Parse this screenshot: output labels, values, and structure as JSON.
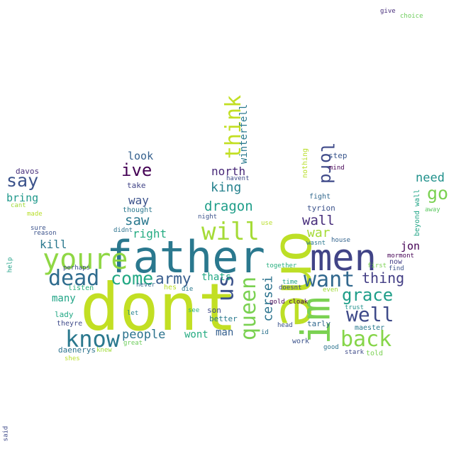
{
  "words": [
    {
      "t": "dont",
      "c": "#c2df23"
    },
    {
      "t": "father",
      "c": "#2a788e"
    },
    {
      "t": "one",
      "c": "#bddf26"
    },
    {
      "t": "men",
      "c": "#414487"
    },
    {
      "t": "im",
      "c": "#7ad151"
    },
    {
      "t": "youre",
      "c": "#8fd744"
    },
    {
      "t": "will",
      "c": "#a5db36"
    },
    {
      "t": "know",
      "c": "#2a788e"
    },
    {
      "t": "dead",
      "c": "#2f6c8e"
    },
    {
      "t": "come",
      "c": "#22a884"
    },
    {
      "t": "army",
      "c": "#365c8d"
    },
    {
      "t": "us",
      "c": "#3b528b"
    },
    {
      "t": "queen",
      "c": "#7ad151"
    },
    {
      "t": "want",
      "c": "#31688e"
    },
    {
      "t": "back",
      "c": "#86d549"
    },
    {
      "t": "grace",
      "c": "#1f9e89"
    },
    {
      "t": "well",
      "c": "#3e4a89"
    },
    {
      "t": "thing",
      "c": "#433e85"
    },
    {
      "t": "think",
      "c": "#c2df23"
    },
    {
      "t": "lord",
      "c": "#3e4989"
    },
    {
      "t": "go",
      "c": "#7ad151"
    },
    {
      "t": "say",
      "c": "#3b528b"
    },
    {
      "t": "ive",
      "c": "#440154"
    },
    {
      "t": "saw",
      "c": "#2a788e"
    },
    {
      "t": "dragon",
      "c": "#1f9e89"
    },
    {
      "t": "wall",
      "c": "#472d7b"
    },
    {
      "t": "war",
      "c": "#a5db36"
    },
    {
      "t": "king",
      "c": "#26828e"
    },
    {
      "t": "north",
      "c": "#482878"
    },
    {
      "t": "cersei",
      "c": "#2c738e"
    },
    {
      "t": "winterfell",
      "c": "#29798e"
    },
    {
      "t": "need",
      "c": "#21918c"
    },
    {
      "t": "people",
      "c": "#2c738e"
    },
    {
      "t": "right",
      "c": "#25ac82"
    },
    {
      "t": "way",
      "c": "#3b528b"
    },
    {
      "t": "look",
      "c": "#35608d"
    },
    {
      "t": "kill",
      "c": "#2a788e"
    },
    {
      "t": "bring",
      "c": "#1f988b"
    },
    {
      "t": "jon",
      "c": "#440154"
    },
    {
      "t": "thats",
      "c": "#22a884"
    },
    {
      "t": "many",
      "c": "#20a486"
    },
    {
      "t": "man",
      "c": "#355f8d"
    },
    {
      "t": "wont",
      "c": "#25ab82"
    },
    {
      "t": "son",
      "c": "#3e4a89"
    },
    {
      "t": "better",
      "c": "#297a8e"
    },
    {
      "t": "tarly",
      "c": "#31688e"
    },
    {
      "t": "tyrion",
      "c": "#3b528b"
    },
    {
      "t": "davos",
      "c": "#472d7b"
    },
    {
      "t": "take",
      "c": "#414487"
    },
    {
      "t": "nothing",
      "c": "#b8de29"
    },
    {
      "t": "step",
      "c": "#39568c"
    },
    {
      "t": "mind",
      "c": "#440154"
    },
    {
      "t": "havent",
      "c": "#3e4a89"
    },
    {
      "t": "thought",
      "c": "#2a788e"
    },
    {
      "t": "fight",
      "c": "#31688e"
    },
    {
      "t": "beyond wall",
      "c": "#20a486"
    },
    {
      "t": "away",
      "c": "#5ec962"
    },
    {
      "t": "night",
      "c": "#3b528b"
    },
    {
      "t": "didnt",
      "c": "#2c738e"
    },
    {
      "t": "use",
      "c": "#b8de29"
    },
    {
      "t": "made",
      "c": "#b8de29"
    },
    {
      "t": "cant",
      "c": "#a0da39"
    },
    {
      "t": "sure",
      "c": "#3b528b"
    },
    {
      "t": "reason",
      "c": "#3b528b"
    },
    {
      "t": "house",
      "c": "#33638d"
    },
    {
      "t": "wasnt",
      "c": "#2a788e"
    },
    {
      "t": "mormont",
      "c": "#440154"
    },
    {
      "t": "now",
      "c": "#433e85"
    },
    {
      "t": "perhaps",
      "c": "#3e4a89"
    },
    {
      "t": "together",
      "c": "#29af7f"
    },
    {
      "t": "first",
      "c": "#7ad151"
    },
    {
      "t": "find",
      "c": "#3b528b"
    },
    {
      "t": "help",
      "c": "#1fa187"
    },
    {
      "t": "listen",
      "c": "#2ab07f"
    },
    {
      "t": "never",
      "c": "#31688e"
    },
    {
      "t": "hes",
      "c": "#b8de29"
    },
    {
      "t": "die",
      "c": "#29798e"
    },
    {
      "t": "time",
      "c": "#20a486"
    },
    {
      "t": "doesnt",
      "c": "#3e4a89"
    },
    {
      "t": "even",
      "c": "#a0da39"
    },
    {
      "t": "gold cloak",
      "c": "#440154"
    },
    {
      "t": "trust",
      "c": "#21918c"
    },
    {
      "t": "lady",
      "c": "#22a884"
    },
    {
      "t": "let",
      "c": "#26828e"
    },
    {
      "t": "see",
      "c": "#2ab07f"
    },
    {
      "t": "theyre",
      "c": "#3e4a89"
    },
    {
      "t": "maester",
      "c": "#29798e"
    },
    {
      "t": "head",
      "c": "#3b528b"
    },
    {
      "t": "id",
      "c": "#2c728e"
    },
    {
      "t": "daenerys",
      "c": "#2c738e"
    },
    {
      "t": "great",
      "c": "#6ccd5a"
    },
    {
      "t": "knew",
      "c": "#a0da39"
    },
    {
      "t": "work",
      "c": "#3b528b"
    },
    {
      "t": "good",
      "c": "#2c738e"
    },
    {
      "t": "stark",
      "c": "#3e4a89"
    },
    {
      "t": "told",
      "c": "#7ad151"
    },
    {
      "t": "shes",
      "c": "#b8de29"
    },
    {
      "t": "give",
      "c": "#472d7b"
    },
    {
      "t": "choice",
      "c": "#6ccd5a"
    },
    {
      "t": "said",
      "c": "#3e4a89"
    }
  ]
}
